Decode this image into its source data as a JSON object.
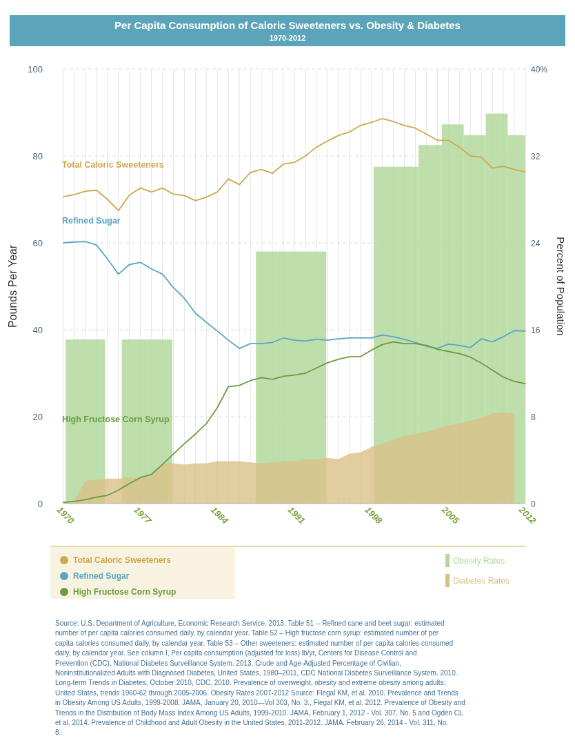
{
  "chart_data": {
    "type": "line",
    "title": "Per Capita Consumption of Caloric Sweeteners vs. Obesity & Diabetes",
    "subtitle": "1970-2012",
    "ylabel": "Pounds Per Year",
    "y2label": "Percent of Population",
    "x": [
      1970,
      1971,
      1972,
      1973,
      1974,
      1975,
      1976,
      1977,
      1978,
      1979,
      1980,
      1981,
      1982,
      1983,
      1984,
      1985,
      1986,
      1987,
      1988,
      1989,
      1990,
      1991,
      1992,
      1993,
      1994,
      1995,
      1996,
      1997,
      1998,
      1999,
      2000,
      2001,
      2002,
      2003,
      2004,
      2005,
      2006,
      2007,
      2008,
      2009,
      2010,
      2011,
      2012
    ],
    "xlim": [
      1970,
      2012
    ],
    "xticks": [
      1970,
      {
        "value": 1971,
        "label": null
      },
      {
        "value": 1972,
        "label": null
      },
      {
        "value": 1973,
        "label": null
      },
      {
        "value": 1974,
        "label": null
      },
      {
        "value": 1975,
        "label": null
      },
      {
        "value": 1976,
        "label": null
      },
      1977,
      {
        "value": 1978,
        "label": null
      },
      {
        "value": 1979,
        "label": null
      },
      {
        "value": 1980,
        "label": null
      },
      {
        "value": 1981,
        "label": null
      },
      {
        "value": 1982,
        "label": null
      },
      {
        "value": 1983,
        "label": null
      },
      1984,
      {
        "value": 1985,
        "label": null
      },
      {
        "value": 1986,
        "label": null
      },
      {
        "value": 1987,
        "label": null
      },
      {
        "value": 1988,
        "label": null
      },
      {
        "value": 1989,
        "label": null
      },
      {
        "value": 1990,
        "label": null
      },
      1991,
      {
        "value": 1992,
        "label": null
      },
      {
        "value": 1993,
        "label": null
      },
      {
        "value": 1994,
        "label": null
      },
      {
        "value": 1995,
        "label": null
      },
      {
        "value": 1996,
        "label": null
      },
      {
        "value": 1997,
        "label": null
      },
      1998,
      {
        "value": 1999,
        "label": null
      },
      {
        "value": 2000,
        "label": null
      },
      {
        "value": 2001,
        "label": null
      },
      {
        "value": 2002,
        "label": null
      },
      {
        "value": 2003,
        "label": null
      },
      {
        "value": 2004,
        "label": null
      },
      2005,
      {
        "value": 2006,
        "label": null
      },
      {
        "value": 2007,
        "label": null
      },
      {
        "value": 2008,
        "label": null
      },
      {
        "value": 2009,
        "label": null
      },
      {
        "value": 2010,
        "label": null
      },
      {
        "value": 2011,
        "label": null
      },
      2012
    ],
    "ylim": [
      0,
      100
    ],
    "yticks": [
      0,
      20,
      40,
      60,
      80,
      100
    ],
    "y2lim": [
      0,
      40
    ],
    "y2ticks": [
      0,
      8,
      16,
      24,
      32,
      {
        "value": 40,
        "label": "40%"
      }
    ],
    "grid": true,
    "legend": "bottom",
    "series": [
      {
        "name": "Total Caloric Sweeteners",
        "color": "#cfa84e",
        "values": [
          70.6,
          71.1,
          71.9,
          72.1,
          70.0,
          67.4,
          71.0,
          72.6,
          71.7,
          72.6,
          71.2,
          70.9,
          69.7,
          70.5,
          71.7,
          74.7,
          73.4,
          76.2,
          76.9,
          76.0,
          78.1,
          78.5,
          80.0,
          82.0,
          83.4,
          84.7,
          85.5,
          87.0,
          87.7,
          88.6,
          87.9,
          87.0,
          86.4,
          85.0,
          83.6,
          83.6,
          82.0,
          80.0,
          79.7,
          77.2,
          77.6,
          76.9,
          76.3
        ]
      },
      {
        "name": "Refined Sugar",
        "color": "#5aa6c6",
        "values": [
          60.0,
          60.2,
          60.3,
          59.5,
          56.3,
          52.8,
          55.0,
          55.5,
          54.0,
          52.8,
          49.7,
          47.2,
          43.8,
          41.7,
          39.7,
          37.6,
          35.7,
          36.8,
          36.8,
          37.1,
          38.1,
          37.6,
          37.4,
          37.8,
          37.6,
          37.9,
          38.1,
          38.1,
          38.1,
          38.8,
          38.4,
          37.8,
          37.1,
          36.2,
          35.7,
          36.7,
          36.4,
          35.9,
          37.9,
          37.2,
          38.4,
          39.8,
          39.7
        ]
      },
      {
        "name": "High Fructose Corn Syrup",
        "color": "#6b9c42",
        "values": [
          0.3,
          0.5,
          0.9,
          1.5,
          1.9,
          3.1,
          4.6,
          6.0,
          6.7,
          9.0,
          11.4,
          13.8,
          16.0,
          18.4,
          22.1,
          26.9,
          27.2,
          28.3,
          29.0,
          28.6,
          29.3,
          29.6,
          30.0,
          31.2,
          32.4,
          33.2,
          33.8,
          33.8,
          35.3,
          36.6,
          37.2,
          36.8,
          36.8,
          36.4,
          35.5,
          35.0,
          34.5,
          33.7,
          32.3,
          30.7,
          29.1,
          28.1,
          27.6
        ]
      },
      {
        "name": "Obesity Rates",
        "type": "histogram",
        "axis": "y2",
        "color": "#b3d89c",
        "bins": [
          1970.2,
          1973.8,
          1975.3,
          1979.9,
          1987.5,
          1993.9,
          1998.2,
          2002.3,
          2004.4,
          2006.4,
          2008.4,
          2010.4,
          2012
        ],
        "values": [
          15.1,
          null,
          15.1,
          null,
          23.2,
          null,
          31.0,
          33.0,
          34.9,
          33.9,
          35.9,
          33.9
        ]
      },
      {
        "name": "Diabetes Rates",
        "type": "area",
        "axis": "y2",
        "color": "#d9c088",
        "values": [
          0.1,
          0.3,
          2.1,
          2.2,
          2.3,
          2.3,
          2.4,
          2.4,
          2.5,
          3.7,
          3.7,
          3.6,
          3.7,
          3.7,
          3.9,
          3.9,
          3.9,
          3.8,
          3.7,
          3.8,
          3.9,
          3.9,
          4.1,
          4.1,
          4.2,
          4.1,
          4.6,
          4.7,
          5.2,
          5.5,
          5.9,
          6.2,
          6.4,
          6.6,
          6.9,
          7.2,
          7.4,
          7.6,
          7.9,
          8.3,
          8.4,
          8.3,
          null
        ]
      }
    ],
    "annotations": [
      "Source: U.S. Department of Agriculture, Economic Research Service. 2013. Table 51 -- Refined cane and beet sugar: estimated number of per capita calories consumed daily, by calendar year. Table 52 – High fructose corn syrup: estimated number of per capita calories consumed daily, by calendar year. Table 53 – Other sweeteners: estimated number of per capita calories consumed daily, by calendar year. See column I, Per capita consumption (adjusted for loss) lb/yr, Centers for Disease Control and Prevention (CDC), National Diabetes Surveillance System. 2013. Crude and Age-Adjusted Percentage of Civilian, Noninstitutionalized Adults with Diagnosed Diabetes, United States, 1980–2011, CDC National Diabetes Surveillance System. 2010. Long-term Trends in Diabetes, October 2010, CDC. 2010. Prevalence of overweight, obesity and extreme obesity among adults: United States, trends 1960-62 through 2005-2006. Obesity Rates 2007-2012 Source: Flegal KM, et al. 2010. Prevalence and Trends in Obesity Among US Adults, 1999-2008. JAMA, January 20, 2010—Vol 303, No. 3., Flegal KM, et al. 2012. Prevalence of Obesity and Trends in the Distribution of Body Mass Index Among US Adults, 1999-2010. JAMA, February 1, 2012 - Vol. 307, No. 5 and Ogden CL et al. 2014. Prevalence of Childhood and Adult Obesity in the United States, 2011-2012. JAMA. February 26, 2014 - Vol. 311, No. 8."
    ]
  }
}
